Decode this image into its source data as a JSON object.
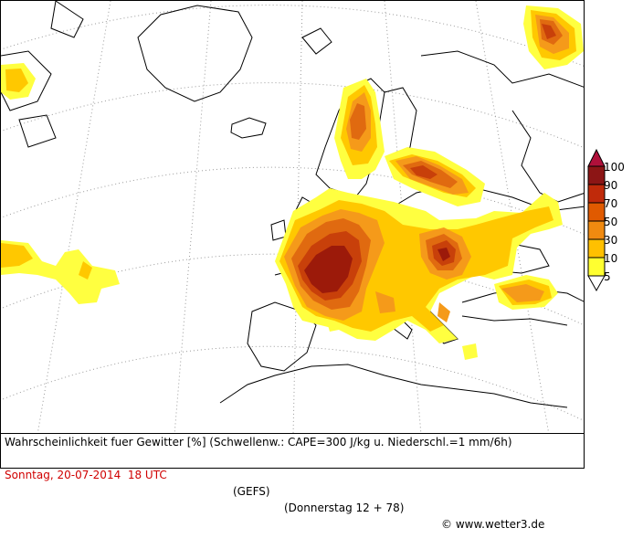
{
  "caption": {
    "line1": "Wahrscheinlichkeit fuer Gewitter [%] (Schwellenw.: CAPE=300 J/kg u. Niederschl.=1 mm/6h)",
    "date": "Sonntag, 20-07-2014  18 UTC",
    "model": "(GEFS)",
    "run": "(Donnerstag 12 + 78)",
    "copyright": "© www.wetter3.de"
  },
  "legend": {
    "labels": [
      "100",
      "90",
      "70",
      "50",
      "30",
      "10",
      "5"
    ],
    "colors": [
      "#b0103a",
      "#8c1515",
      "#c02a0a",
      "#e05a00",
      "#f08a10",
      "#ffc000",
      "#ffff30"
    ]
  },
  "colors": {
    "c5": "#ffff40",
    "c10": "#ffc800",
    "c30": "#f59a1a",
    "c50": "#e06a10",
    "c70": "#c8400a",
    "c90": "#9c1a0a",
    "c100": "#8a0a1a",
    "coast": "#000000",
    "grid": "#9a9a9a"
  }
}
